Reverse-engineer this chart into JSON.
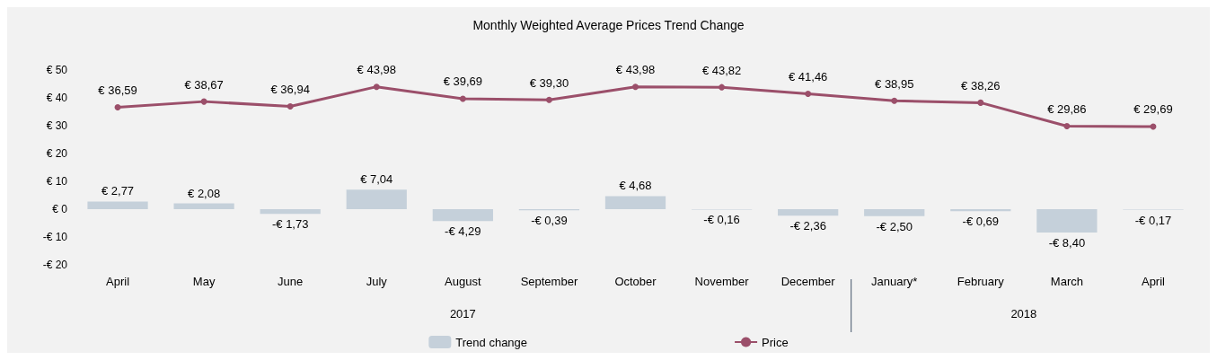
{
  "chart_data": {
    "type": "bar",
    "title": "Monthly Weighted Average Prices Trend Change",
    "categories": [
      "April",
      "May",
      "June",
      "July",
      "August",
      "September",
      "October",
      "November",
      "December",
      "January*",
      "February",
      "March",
      "April"
    ],
    "series": [
      {
        "name": "Trend change",
        "color": "#c5d0da",
        "values": [
          2.77,
          2.08,
          -1.73,
          7.04,
          -4.29,
          -0.39,
          4.68,
          -0.16,
          -2.36,
          -2.5,
          -0.69,
          -8.4,
          -0.17
        ],
        "value_labels": [
          "€ 2,77",
          "€ 2,08",
          "-€ 1,73",
          "€ 7,04",
          "-€ 4,29",
          "-€ 0,39",
          "€ 4,68",
          "-€ 0,16",
          "-€ 2,36",
          "-€ 2,50",
          "-€ 0,69",
          "-€ 8,40",
          "-€ 0,17"
        ]
      },
      {
        "name": "Price",
        "type": "line",
        "color": "#9b4f6a",
        "marker": "circle",
        "values": [
          36.59,
          38.67,
          36.94,
          43.98,
          39.69,
          39.3,
          43.98,
          43.82,
          41.46,
          38.95,
          38.26,
          29.86,
          29.69
        ],
        "value_labels": [
          "€ 36,59",
          "€ 38,67",
          "€ 36,94",
          "€ 43,98",
          "€ 39,69",
          "€ 39,30",
          "€ 43,98",
          "€ 43,82",
          "€ 41,46",
          "€ 38,95",
          "€ 38,26",
          "€ 29,86",
          "€ 29,69"
        ]
      }
    ],
    "ylim": [
      -20,
      50
    ],
    "yticks": [
      {
        "value": -20,
        "label": "-€ 20"
      },
      {
        "value": -10,
        "label": "-€ 10"
      },
      {
        "value": 0,
        "label": "€ 0"
      },
      {
        "value": 10,
        "label": "€ 10"
      },
      {
        "value": 20,
        "label": "€ 20"
      },
      {
        "value": 30,
        "label": "€ 30"
      },
      {
        "value": 40,
        "label": "€ 40"
      },
      {
        "value": 50,
        "label": "€ 50"
      }
    ],
    "annotations": [
      "2017",
      "2018"
    ],
    "legend": "bottom"
  }
}
